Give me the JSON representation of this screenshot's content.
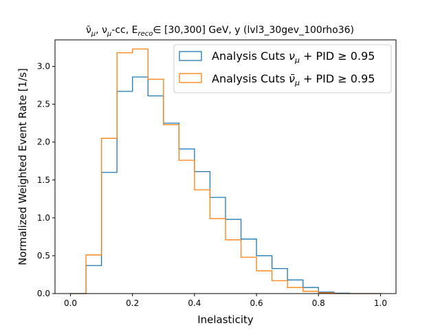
{
  "chart_data": {
    "type": "step-histogram",
    "title": "ν̄μ, νμ-cc, Ereco ∈ [30,300] GeV, y (lvl3_30gev_100rho36)",
    "title_parts": {
      "nubar": "ν̄",
      "nubar_sub": "μ",
      "sep1": ", ",
      "nu": "ν",
      "nu_sub": "μ",
      "cc": "-cc, E",
      "e_sub": "reco",
      "rest": "∈ [30,300] GeV, y (lvl3_30gev_100rho36)"
    },
    "xlabel": "Inelasticity",
    "ylabel": "Normalized Weighted Event Rate [1/s]",
    "xlim": [
      -0.05,
      1.05
    ],
    "ylim": [
      0,
      3.35
    ],
    "xticks": [
      0.0,
      0.2,
      0.4,
      0.6,
      0.8,
      1.0
    ],
    "xtick_labels": [
      "0.0",
      "0.2",
      "0.4",
      "0.6",
      "0.8",
      "1.0"
    ],
    "yticks": [
      0.0,
      0.5,
      1.0,
      1.5,
      2.0,
      2.5,
      3.0
    ],
    "ytick_labels": [
      "0.0",
      "0.5",
      "1.0",
      "1.5",
      "2.0",
      "2.5",
      "3.0"
    ],
    "grid": false,
    "legend_position": "top-right",
    "bin_edges": [
      0.0,
      0.05,
      0.1,
      0.15,
      0.2,
      0.25,
      0.3,
      0.35,
      0.4,
      0.45,
      0.5,
      0.55,
      0.6,
      0.65,
      0.7,
      0.75,
      0.8,
      0.85,
      0.9,
      0.95,
      1.0
    ],
    "series": [
      {
        "name": "Analysis Cuts νμ + PID ≥ 0.95",
        "legend_parts": {
          "pre": "Analysis Cuts ",
          "sym": "ν",
          "sub": "μ",
          "post": " + PID ≥ 0.95"
        },
        "color": "#1f77b4",
        "values": [
          0.0,
          0.37,
          1.6,
          2.67,
          2.86,
          2.61,
          2.25,
          1.91,
          1.61,
          1.27,
          0.98,
          0.72,
          0.5,
          0.33,
          0.18,
          0.08,
          0.02,
          0.005,
          0.0,
          0.0
        ]
      },
      {
        "name": "Analysis Cuts ν̄μ + PID ≥ 0.95",
        "legend_parts": {
          "pre": "Analysis Cuts ",
          "sym": "ν̄",
          "sub": "μ",
          "post": " + PID ≥ 0.95"
        },
        "color": "#ff7f0e",
        "values": [
          0.0,
          0.51,
          2.05,
          3.18,
          3.23,
          2.83,
          2.23,
          1.76,
          1.37,
          0.99,
          0.71,
          0.48,
          0.3,
          0.17,
          0.08,
          0.03,
          0.01,
          0.0,
          0.0,
          0.0
        ]
      }
    ]
  }
}
